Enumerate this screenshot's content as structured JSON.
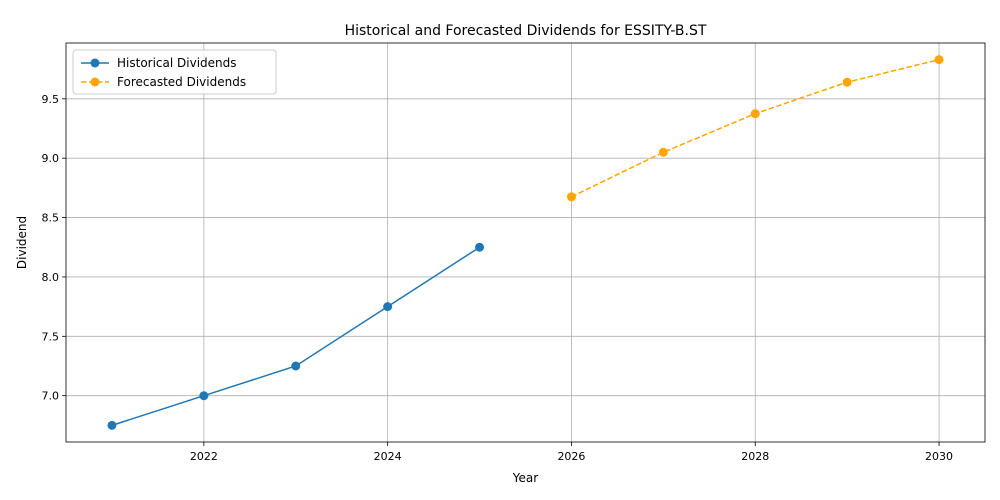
{
  "chart_data": {
    "type": "line",
    "title": "Historical and Forecasted Dividends for ESSITY-B.ST",
    "xlabel": "Year",
    "ylabel": "Dividend",
    "xlim": [
      2020.5,
      2030.5
    ],
    "ylim": [
      6.61,
      9.97
    ],
    "x_ticks": [
      2022,
      2024,
      2026,
      2028,
      2030
    ],
    "y_ticks": [
      7.0,
      7.5,
      8.0,
      8.5,
      9.0,
      9.5
    ],
    "y_tick_labels": [
      "7.0",
      "7.5",
      "8.0",
      "8.5",
      "9.0",
      "9.5"
    ],
    "grid": true,
    "legend_position": "top-left",
    "series": [
      {
        "name": "Historical Dividends",
        "color": "#1f77b4",
        "style": "solid",
        "marker": "circle",
        "x": [
          2021,
          2022,
          2023,
          2024,
          2025
        ],
        "y": [
          6.75,
          7.0,
          7.25,
          7.75,
          8.25
        ]
      },
      {
        "name": "Forecasted Dividends",
        "color": "#ffa500",
        "style": "dashed",
        "marker": "circle",
        "x": [
          2026,
          2027,
          2028,
          2029,
          2030
        ],
        "y": [
          8.675,
          9.05,
          9.375,
          9.64,
          9.83
        ]
      }
    ]
  }
}
